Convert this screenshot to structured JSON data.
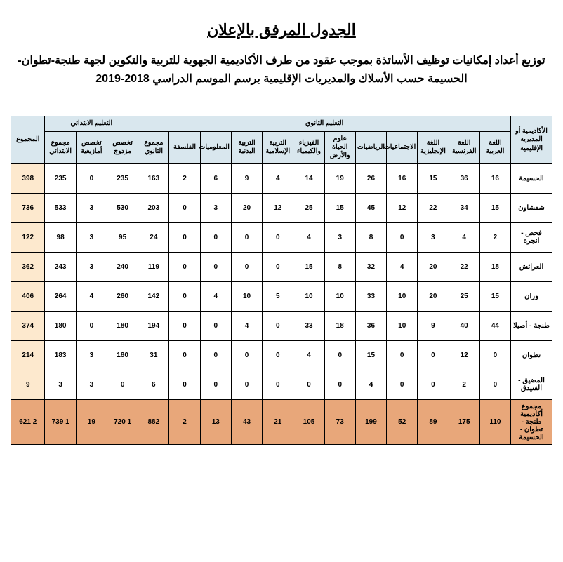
{
  "title": "الجدول المرفق بالإعلان",
  "subtitle": "توزيع أعداد إمكانيات توظيف الأساتذة بموجب عقود من طرف الأكاديمية الجهوية للتربية والتكوين لجهة طنجة-تطوان-الحسيمة حسب الأسلاك والمديريات الإقليمية برسم الموسم الدراسي 2018-2019",
  "columns": {
    "region": "الأكاديمية أو المديرية الإقليمية",
    "secondary_group": "التعليم الثانوي",
    "primary_group": "التعليم الابتدائي",
    "totals": "المجموع",
    "sec": {
      "arabic": "اللغة العربية",
      "french": "اللغة الفرنسية",
      "english": "اللغة الإنجليزية",
      "social": "الاجتماعيات",
      "math": "الرياضيات",
      "svt": "علوم الحياة والأرض",
      "physics": "الفيزياء والكيمياء",
      "islamic": "التربية الإسلامية",
      "pe": "التربية البدنية",
      "info": "المعلوميات",
      "philo": "الفلسفة",
      "sec_total": "مجموع الثانوي"
    },
    "prim": {
      "double": "تخصص مزدوج",
      "amazigh": "تخصص أمازيغية",
      "prim_total": "مجموع الابتدائي"
    }
  },
  "rows": [
    {
      "region": "الحسيمة",
      "arabic": "16",
      "french": "36",
      "english": "15",
      "social": "16",
      "math": "26",
      "svt": "19",
      "physics": "14",
      "islamic": "4",
      "pe": "9",
      "info": "6",
      "philo": "2",
      "sec_total": "163",
      "double": "235",
      "amazigh": "0",
      "prim_total": "235",
      "total": "398"
    },
    {
      "region": "شفشاون",
      "arabic": "15",
      "french": "34",
      "english": "22",
      "social": "12",
      "math": "45",
      "svt": "15",
      "physics": "25",
      "islamic": "12",
      "pe": "20",
      "info": "3",
      "philo": "0",
      "sec_total": "203",
      "double": "530",
      "amazigh": "3",
      "prim_total": "533",
      "total": "736"
    },
    {
      "region": "فحص - انجرة",
      "arabic": "2",
      "french": "4",
      "english": "3",
      "social": "0",
      "math": "8",
      "svt": "3",
      "physics": "4",
      "islamic": "0",
      "pe": "0",
      "info": "0",
      "philo": "0",
      "sec_total": "24",
      "double": "95",
      "amazigh": "3",
      "prim_total": "98",
      "total": "122"
    },
    {
      "region": "العرائش",
      "arabic": "18",
      "french": "22",
      "english": "20",
      "social": "4",
      "math": "32",
      "svt": "8",
      "physics": "15",
      "islamic": "0",
      "pe": "0",
      "info": "0",
      "philo": "0",
      "sec_total": "119",
      "double": "240",
      "amazigh": "3",
      "prim_total": "243",
      "total": "362"
    },
    {
      "region": "وزان",
      "arabic": "15",
      "french": "25",
      "english": "20",
      "social": "10",
      "math": "33",
      "svt": "10",
      "physics": "10",
      "islamic": "5",
      "pe": "10",
      "info": "4",
      "philo": "0",
      "sec_total": "142",
      "double": "260",
      "amazigh": "4",
      "prim_total": "264",
      "total": "406"
    },
    {
      "region": "طنجة - أصيلا",
      "arabic": "44",
      "french": "40",
      "english": "9",
      "social": "10",
      "math": "36",
      "svt": "18",
      "physics": "33",
      "islamic": "0",
      "pe": "4",
      "info": "0",
      "philo": "0",
      "sec_total": "194",
      "double": "180",
      "amazigh": "0",
      "prim_total": "180",
      "total": "374"
    },
    {
      "region": "تطوان",
      "arabic": "0",
      "french": "12",
      "english": "0",
      "social": "0",
      "math": "15",
      "svt": "0",
      "physics": "4",
      "islamic": "0",
      "pe": "0",
      "info": "0",
      "philo": "0",
      "sec_total": "31",
      "double": "180",
      "amazigh": "3",
      "prim_total": "183",
      "total": "214"
    },
    {
      "region": "المضيق - الفنيدق",
      "arabic": "0",
      "french": "2",
      "english": "0",
      "social": "0",
      "math": "4",
      "svt": "0",
      "physics": "0",
      "islamic": "0",
      "pe": "0",
      "info": "0",
      "philo": "0",
      "sec_total": "6",
      "double": "0",
      "amazigh": "3",
      "prim_total": "3",
      "total": "9"
    }
  ],
  "total_row": {
    "region": "مجموع أكاديمية طنجة - تطوان - الحسيمة",
    "arabic": "110",
    "french": "175",
    "english": "89",
    "social": "52",
    "math": "199",
    "svt": "73",
    "physics": "105",
    "islamic": "21",
    "pe": "43",
    "info": "13",
    "philo": "2",
    "sec_total": "882",
    "double": "1 720",
    "amazigh": "19",
    "prim_total": "1 739",
    "total": "2 621"
  },
  "style": {
    "header_bg": "#d9e7ee",
    "total_col_bg": "#fde9ce",
    "total_row_bg": "#e8a77a",
    "border": "#000000",
    "font_body": 10,
    "font_title": 22,
    "font_subtitle": 16
  }
}
